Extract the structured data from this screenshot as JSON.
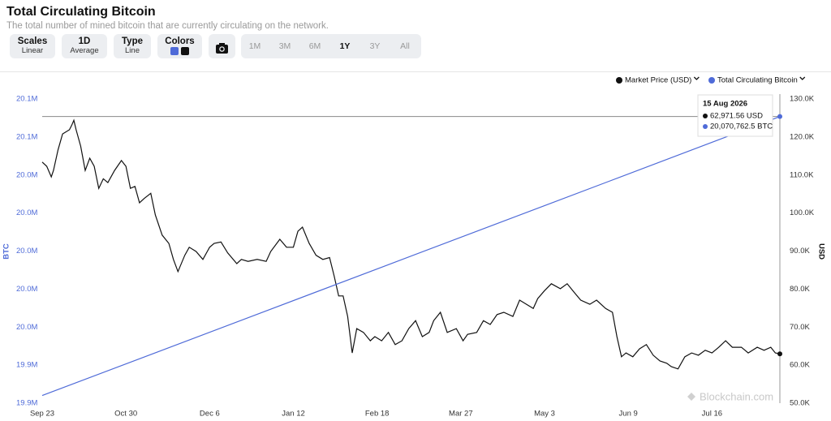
{
  "header": {
    "title": "Total Circulating Bitcoin",
    "subtitle": "The total number of mined bitcoin that are currently circulating on the network."
  },
  "controls": {
    "scales": {
      "label": "Scales",
      "value": "Linear"
    },
    "interval": {
      "label": "1D",
      "value": "Average"
    },
    "type": {
      "label": "Type",
      "value": "Line"
    },
    "colors": {
      "label": "Colors"
    },
    "ranges": [
      "1M",
      "3M",
      "6M",
      "1Y",
      "3Y",
      "All"
    ],
    "active_range": "1Y"
  },
  "chart_data": {
    "type": "line",
    "y_label": "BTC",
    "y2_label": "USD",
    "xlim": [
      0,
      326
    ],
    "xticks": [
      {
        "value": 0,
        "label": "Sep 23"
      },
      {
        "value": 37,
        "label": "Oct 30"
      },
      {
        "value": 74,
        "label": "Dec 6"
      },
      {
        "value": 111,
        "label": "Jan 12"
      },
      {
        "value": 148,
        "label": "Feb 18"
      },
      {
        "value": 185,
        "label": "Mar 27"
      },
      {
        "value": 222,
        "label": "May 3"
      },
      {
        "value": 259,
        "label": "Jun 9"
      },
      {
        "value": 296,
        "label": "Jul 16"
      }
    ],
    "ylim": [
      19920000,
      20080000
    ],
    "yticks": [
      {
        "value": 19920000,
        "label": "19.9M"
      },
      {
        "value": 19940000,
        "label": "19.9M"
      },
      {
        "value": 19960000,
        "label": "20.0M"
      },
      {
        "value": 19980000,
        "label": "20.0M"
      },
      {
        "value": 20000000,
        "label": "20.0M"
      },
      {
        "value": 20020000,
        "label": "20.0M"
      },
      {
        "value": 20040000,
        "label": "20.0M"
      },
      {
        "value": 20060000,
        "label": "20.1M"
      },
      {
        "value": 20080000,
        "label": "20.1M"
      }
    ],
    "y2lim": [
      50000,
      130000
    ],
    "y2ticks": [
      {
        "value": 50000,
        "label": "50.0K"
      },
      {
        "value": 60000,
        "label": "60.0K"
      },
      {
        "value": 70000,
        "label": "70.0K"
      },
      {
        "value": 80000,
        "label": "80.0K"
      },
      {
        "value": 90000,
        "label": "90.0K"
      },
      {
        "value": 100000,
        "label": "100.0K"
      },
      {
        "value": 110000,
        "label": "110.0K"
      },
      {
        "value": 120000,
        "label": "120.0K"
      },
      {
        "value": 130000,
        "label": "130.0K"
      }
    ],
    "series": [
      {
        "name": "Market Price (USD)",
        "color": "#111111",
        "axis": "y2",
        "x": [
          0,
          2,
          4,
          5,
          7,
          9,
          12,
          13,
          14,
          15,
          17,
          19,
          21,
          23,
          25,
          27,
          29,
          32,
          35,
          37,
          39,
          41,
          43,
          45,
          48,
          50,
          53,
          56,
          58,
          60,
          63,
          65,
          68,
          71,
          74,
          76,
          79,
          82,
          86,
          88,
          91,
          95,
          99,
          101,
          105,
          108,
          111,
          113,
          115,
          118,
          121,
          124,
          127,
          129,
          131,
          133,
          135,
          137,
          139,
          142,
          145,
          147,
          150,
          153,
          156,
          159,
          162,
          165,
          168,
          171,
          173,
          176,
          179,
          183,
          186,
          188,
          192,
          195,
          198,
          201,
          204,
          208,
          211,
          214,
          217,
          219,
          222,
          225,
          229,
          232,
          235,
          238,
          242,
          245,
          249,
          252,
          254,
          256,
          258,
          261,
          264,
          267,
          270,
          273,
          276,
          278,
          281,
          284,
          287,
          290,
          293,
          296,
          299,
          302,
          305,
          309,
          312,
          316,
          319,
          322,
          324,
          326
        ],
        "values": [
          113400,
          112300,
          109500,
          111200,
          116600,
          120800,
          121900,
          123000,
          124400,
          121900,
          117600,
          111200,
          114400,
          112300,
          106500,
          109000,
          108000,
          111200,
          113800,
          112300,
          106500,
          107000,
          102700,
          103800,
          105200,
          99500,
          94200,
          92000,
          87800,
          84600,
          88900,
          91000,
          89900,
          87800,
          91000,
          92000,
          92400,
          89500,
          86700,
          87800,
          87300,
          87800,
          87300,
          89900,
          93100,
          91000,
          91000,
          95200,
          96300,
          92000,
          88900,
          87800,
          88300,
          83500,
          78200,
          78200,
          72800,
          63200,
          69600,
          68600,
          66400,
          67500,
          66400,
          68600,
          65400,
          66400,
          69600,
          71700,
          67500,
          68600,
          71700,
          73900,
          68600,
          69600,
          66400,
          68100,
          68600,
          71700,
          70700,
          73300,
          73900,
          72800,
          77100,
          76000,
          74900,
          77500,
          79600,
          81400,
          80100,
          81400,
          79200,
          77100,
          76000,
          77100,
          74900,
          73900,
          67500,
          62200,
          63200,
          62200,
          64300,
          65400,
          62600,
          61100,
          60500,
          59600,
          59000,
          62200,
          63200,
          62600,
          63900,
          63200,
          64700,
          66400,
          64700,
          64700,
          63200,
          64700,
          63900,
          64700,
          63200,
          62971.56
        ]
      },
      {
        "name": "Total Circulating Bitcoin",
        "color": "#4f6bd8",
        "axis": "y",
        "x": [
          0,
          50,
          100,
          150,
          200,
          250,
          300,
          326
        ],
        "values": [
          19924000,
          19946500,
          19969000,
          19991500,
          20014000,
          20036500,
          20059000,
          20070762.5
        ]
      }
    ],
    "tooltip": {
      "date": "15 Aug 2026",
      "lines": [
        "62,971.56 USD",
        "20,070,762.5 BTC"
      ]
    },
    "watermark": "Blockchain.com"
  }
}
